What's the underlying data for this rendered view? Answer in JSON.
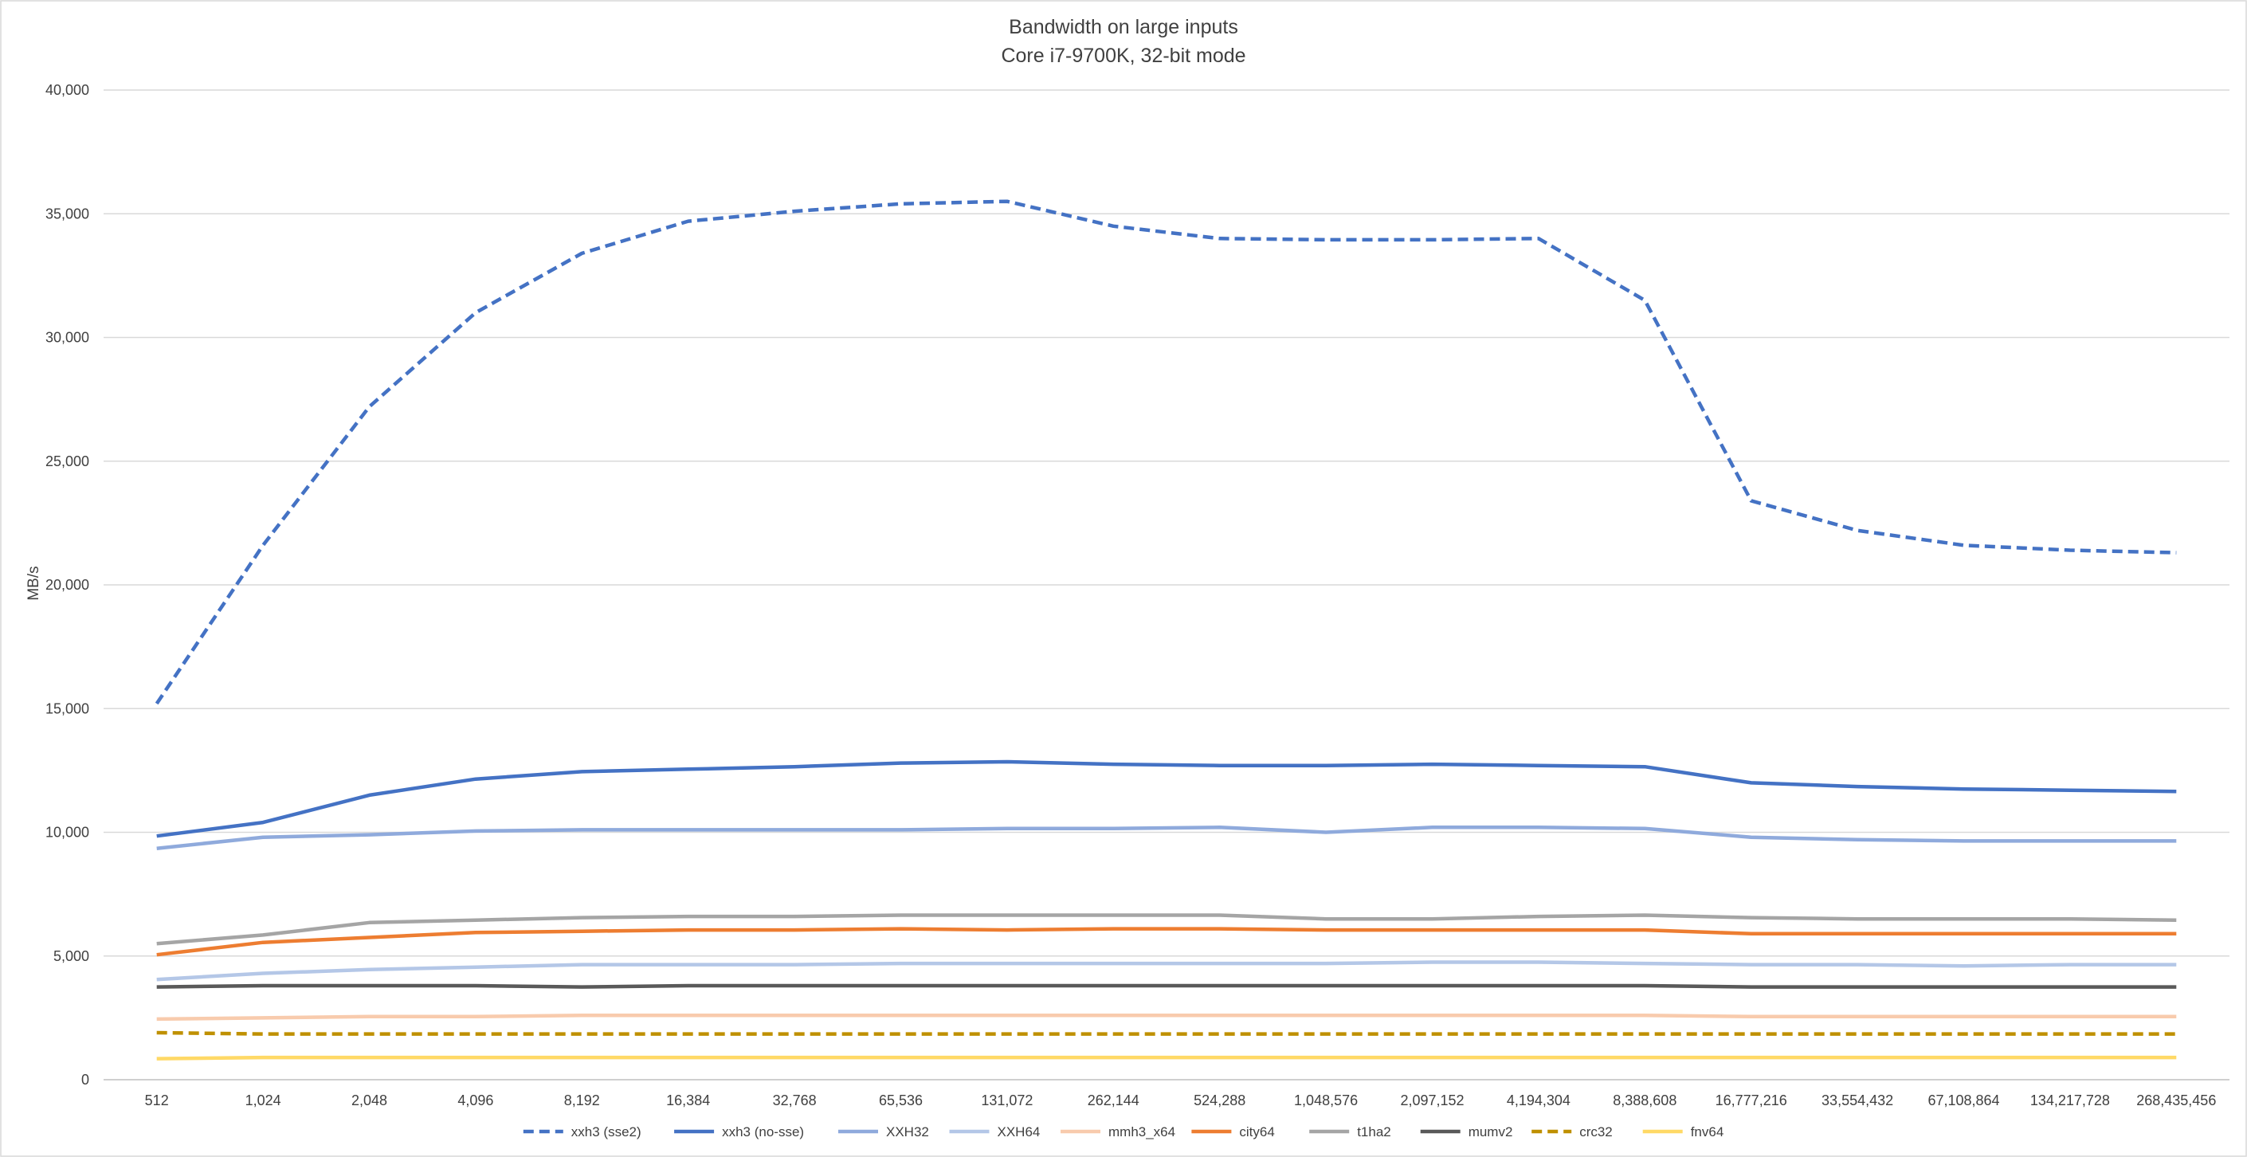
{
  "chart_data": {
    "type": "line",
    "title": "Bandwidth on large inputs",
    "subtitle": "Core i7-9700K, 32-bit mode",
    "xlabel": "",
    "ylabel": "MB/s",
    "ylim": [
      0,
      40000
    ],
    "yticks": [
      0,
      5000,
      10000,
      15000,
      20000,
      25000,
      30000,
      35000,
      40000
    ],
    "ytick_labels": [
      "0",
      "5,000",
      "10,000",
      "15,000",
      "20,000",
      "25,000",
      "30,000",
      "35,000",
      "40,000"
    ],
    "grid": "horizontal",
    "legend_position": "bottom",
    "categories": [
      "512",
      "1,024",
      "2,048",
      "4,096",
      "8,192",
      "16,384",
      "32,768",
      "65,536",
      "131,072",
      "262,144",
      "524,288",
      "1,048,576",
      "2,097,152",
      "4,194,304",
      "8,388,608",
      "16,777,216",
      "33,554,432",
      "67,108,864",
      "134,217,728",
      "268,435,456"
    ],
    "series": [
      {
        "name": "xxh3 (sse2)",
        "color": "#4472C4",
        "dash": "dashed",
        "values": [
          15200,
          21600,
          27200,
          31000,
          33400,
          34700,
          35100,
          35400,
          35500,
          34500,
          34000,
          33950,
          33950,
          34000,
          31500,
          23400,
          22200,
          21600,
          21400,
          21300
        ]
      },
      {
        "name": "xxh3 (no-sse)",
        "color": "#4472C4",
        "dash": "solid",
        "values": [
          9850,
          10400,
          11500,
          12150,
          12450,
          12550,
          12650,
          12800,
          12850,
          12750,
          12700,
          12700,
          12750,
          12700,
          12650,
          12000,
          11850,
          11750,
          11700,
          11650
        ]
      },
      {
        "name": "XXH32",
        "color": "#8FAADC",
        "dash": "solid",
        "values": [
          9350,
          9800,
          9900,
          10050,
          10100,
          10100,
          10100,
          10100,
          10150,
          10150,
          10200,
          10000,
          10200,
          10200,
          10150,
          9800,
          9700,
          9650,
          9650,
          9650
        ]
      },
      {
        "name": "XXH64",
        "color": "#B4C7E7",
        "dash": "solid",
        "values": [
          4050,
          4300,
          4450,
          4550,
          4650,
          4650,
          4650,
          4700,
          4700,
          4700,
          4700,
          4700,
          4750,
          4750,
          4700,
          4650,
          4650,
          4600,
          4650,
          4650
        ]
      },
      {
        "name": "mmh3_x64",
        "color": "#F8CBAD",
        "dash": "solid",
        "values": [
          2450,
          2500,
          2550,
          2550,
          2600,
          2600,
          2600,
          2600,
          2600,
          2600,
          2600,
          2600,
          2600,
          2600,
          2600,
          2550,
          2550,
          2550,
          2550,
          2550
        ]
      },
      {
        "name": "city64",
        "color": "#ED7D31",
        "dash": "solid",
        "values": [
          5050,
          5550,
          5750,
          5950,
          6000,
          6050,
          6050,
          6100,
          6050,
          6100,
          6100,
          6050,
          6050,
          6050,
          6050,
          5900,
          5900,
          5900,
          5900,
          5900
        ]
      },
      {
        "name": "t1ha2",
        "color": "#A5A5A5",
        "dash": "solid",
        "values": [
          5500,
          5850,
          6350,
          6450,
          6550,
          6600,
          6600,
          6650,
          6650,
          6650,
          6650,
          6500,
          6500,
          6600,
          6650,
          6550,
          6500,
          6500,
          6500,
          6450
        ]
      },
      {
        "name": "mumv2",
        "color": "#595959",
        "dash": "solid",
        "values": [
          3750,
          3800,
          3800,
          3800,
          3750,
          3800,
          3800,
          3800,
          3800,
          3800,
          3800,
          3800,
          3800,
          3800,
          3800,
          3750,
          3750,
          3750,
          3750,
          3750
        ]
      },
      {
        "name": "crc32",
        "color": "#BF9000",
        "dash": "dashed",
        "values": [
          1900,
          1850,
          1850,
          1850,
          1850,
          1850,
          1850,
          1850,
          1850,
          1850,
          1850,
          1850,
          1850,
          1850,
          1850,
          1850,
          1850,
          1850,
          1850,
          1850
        ]
      },
      {
        "name": "fnv64",
        "color": "#FFD966",
        "dash": "solid",
        "values": [
          850,
          900,
          900,
          900,
          900,
          900,
          900,
          900,
          900,
          900,
          900,
          900,
          900,
          900,
          900,
          900,
          900,
          900,
          900,
          900
        ]
      }
    ]
  },
  "colors": {
    "gridline": "#D9D9D9",
    "axis_line": "#BFBFBF",
    "text": "#404040",
    "border": "#D9D9D9"
  }
}
